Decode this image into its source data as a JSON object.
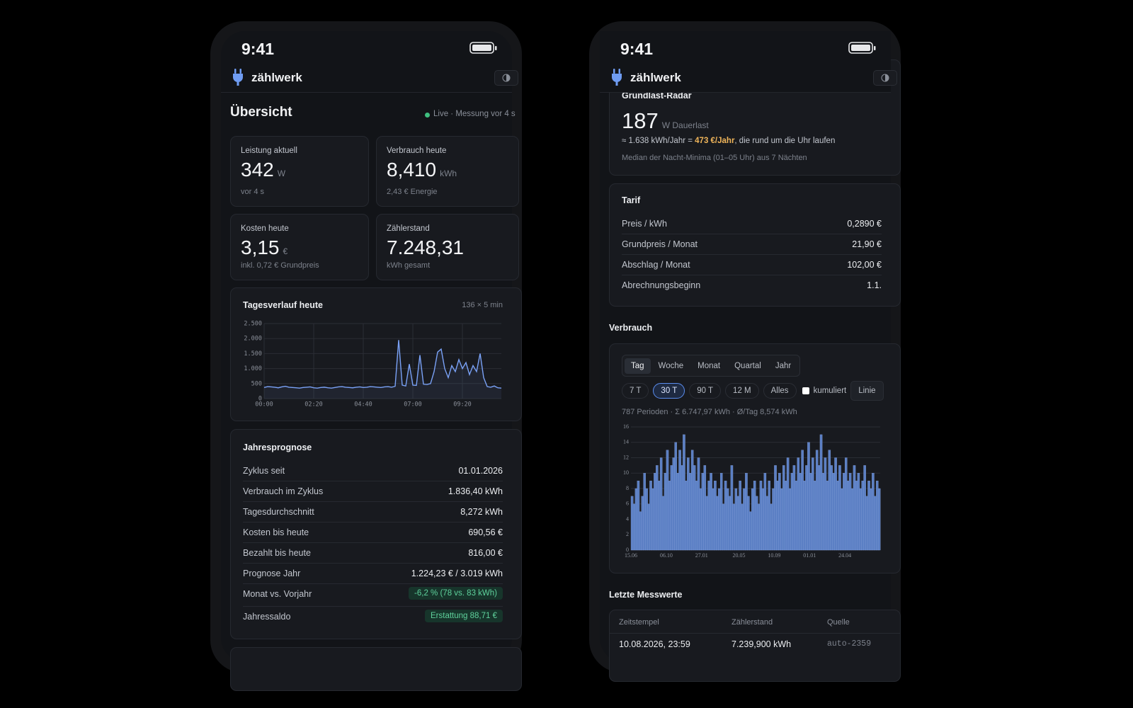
{
  "screens": [
    {
      "status_time": "9:41",
      "app_name": "zählwerk",
      "overview": {
        "title": "Übersicht",
        "live": "Live · Messung vor 4 s"
      },
      "cards": [
        {
          "label": "Leistung aktuell",
          "value": "342",
          "unit": "W",
          "sub": "vor 4 s"
        },
        {
          "label": "Verbrauch heute",
          "value": "8,410",
          "unit": "kWh",
          "sub": "2,43 € Energie"
        },
        {
          "label": "Kosten heute",
          "value": "3,15",
          "unit": "€",
          "sub": "inkl. 0,72 € Grundpreis"
        },
        {
          "label": "Zählerstand",
          "value": "7.248,31",
          "sub": "kWh gesamt"
        }
      ],
      "day_chart": {
        "type": "line",
        "title": "Tagesverlauf heute",
        "meta": "136 × 5 min",
        "color": "#7aa2f7",
        "grid": true,
        "x": [
          0,
          10,
          20,
          30,
          40,
          50,
          60,
          70,
          80,
          90,
          100,
          110,
          120,
          130,
          140,
          150,
          160,
          170,
          180,
          190,
          200,
          210,
          220,
          230,
          240,
          250,
          260,
          270,
          280,
          290,
          300,
          310,
          320,
          330,
          340,
          350,
          360,
          370,
          380,
          390,
          400,
          410,
          420,
          430,
          440,
          450,
          460,
          470,
          480,
          490,
          500,
          510,
          520,
          530,
          540,
          550,
          560,
          570,
          580,
          590,
          600,
          610,
          620,
          630,
          640,
          650,
          660,
          670
        ],
        "values": [
          370,
          400,
          390,
          380,
          360,
          390,
          410,
          380,
          370,
          360,
          350,
          370,
          380,
          390,
          360,
          350,
          370,
          380,
          360,
          350,
          370,
          390,
          400,
          380,
          370,
          360,
          380,
          390,
          370,
          380,
          400,
          390,
          380,
          370,
          390,
          400,
          380,
          410,
          1950,
          450,
          420,
          1150,
          450,
          440,
          1450,
          480,
          470,
          500,
          900,
          1550,
          1650,
          1000,
          700,
          1100,
          900,
          1300,
          1000,
          1200,
          800,
          1100,
          900,
          1500,
          700,
          400,
          380,
          420,
          360,
          350
        ],
        "xlim": [
          0,
          670
        ],
        "xticks": [
          {
            "value": 0,
            "label": "00:00"
          },
          {
            "value": 140,
            "label": "02:20"
          },
          {
            "value": 280,
            "label": "04:40"
          },
          {
            "value": 420,
            "label": "07:00"
          },
          {
            "value": 560,
            "label": "09:20"
          }
        ],
        "ylim": [
          0,
          2500
        ],
        "yticks": [
          0,
          500,
          {
            "value": 1000,
            "label": "1.000"
          },
          {
            "value": 1500,
            "label": "1.500"
          },
          {
            "value": 2000,
            "label": "2.000"
          },
          {
            "value": 2500,
            "label": "2.500"
          }
        ]
      },
      "forecast": {
        "title": "Jahresprognose",
        "rows": [
          {
            "label": "Zyklus seit",
            "value": "01.01.2026"
          },
          {
            "label": "Verbrauch im Zyklus",
            "value": "1.836,40 kWh"
          },
          {
            "label": "Tagesdurchschnitt",
            "value": "8,272 kWh"
          },
          {
            "label": "Kosten bis heute",
            "value": "690,56 €"
          },
          {
            "label": "Bezahlt bis heute",
            "value": "816,00 €"
          },
          {
            "label": "Prognose Jahr",
            "value": "1.224,23 € / 3.019 kWh"
          },
          {
            "label": "Monat vs. Vorjahr",
            "value": "-6,2 % (78 vs. 83 kWh)",
            "badge": true
          },
          {
            "label": "Jahressaldo",
            "value": "Erstattung 88,71 €",
            "badge": true
          }
        ]
      }
    },
    {
      "status_time": "9:41",
      "app_name": "zählwerk",
      "radar": {
        "title": "Grundlast-Radar",
        "value": "187",
        "unit": "W Dauerlast",
        "line_pre": "≈ 1.638 kWh/Jahr = ",
        "line_highlight": "473 €/Jahr",
        "line_post": ", die rund um die Uhr laufen",
        "note": "Median der Nacht-Minima (01–05 Uhr) aus 7 Nächten"
      },
      "tariff": {
        "title": "Tarif",
        "rows": [
          {
            "label": "Preis / kWh",
            "value": "0,2890 €"
          },
          {
            "label": "Grundpreis / Monat",
            "value": "21,90 €"
          },
          {
            "label": "Abschlag / Monat",
            "value": "102,00 €"
          },
          {
            "label": "Abrechnungsbeginn",
            "value": "1.1."
          }
        ]
      },
      "usage": {
        "title": "Verbrauch",
        "tabs": [
          "Tag",
          "Woche",
          "Monat",
          "Quartal",
          "Jahr"
        ],
        "active_tab": 0,
        "ranges": [
          "7 T",
          "30 T",
          "90 T",
          "12 M",
          "Alles"
        ],
        "active_range": 1,
        "cumulative": "kumuliert",
        "mode": "Linie",
        "summary": "787 Perioden · Σ 6.747,97 kWh · Ø/Tag 8,574 kWh",
        "chart": {
          "type": "bar",
          "color": "#5b7fc4",
          "grid": true,
          "categories": [
            "15.06",
            null,
            null,
            null,
            null,
            null,
            null,
            null,
            null,
            null,
            null,
            null,
            null,
            null,
            null,
            null,
            null,
            "06.10",
            null,
            null,
            null,
            null,
            null,
            null,
            null,
            null,
            null,
            null,
            null,
            null,
            null,
            null,
            null,
            null,
            "27.01",
            null,
            null,
            null,
            null,
            null,
            null,
            null,
            null,
            null,
            null,
            null,
            null,
            null,
            null,
            null,
            null,
            null,
            "20.05",
            null,
            null,
            null,
            null,
            null,
            null,
            null,
            null,
            null,
            null,
            null,
            null,
            null,
            null,
            null,
            null,
            "10.09",
            null,
            null,
            null,
            null,
            null,
            null,
            null,
            null,
            null,
            null,
            null,
            null,
            null,
            null,
            null,
            null,
            "01.01",
            null,
            null,
            null,
            null,
            null,
            null,
            null,
            null,
            null,
            null,
            null,
            null,
            null,
            null,
            null,
            null,
            "24.04",
            null,
            null,
            null,
            null,
            null,
            null,
            null,
            null,
            null,
            null,
            null,
            null,
            null,
            null,
            null,
            null
          ],
          "values": [
            7,
            6,
            8,
            9,
            5,
            7,
            10,
            8,
            6,
            9,
            8,
            10,
            11,
            9,
            12,
            7,
            10,
            13,
            9,
            11,
            12,
            14,
            10,
            13,
            11,
            15,
            9,
            12,
            10,
            13,
            11,
            9,
            12,
            8,
            10,
            11,
            7,
            9,
            10,
            8,
            9,
            7,
            8,
            10,
            6,
            9,
            8,
            7,
            11,
            6,
            8,
            7,
            9,
            6,
            8,
            10,
            7,
            5,
            8,
            9,
            7,
            6,
            9,
            8,
            10,
            7,
            9,
            6,
            8,
            11,
            9,
            10,
            8,
            11,
            9,
            12,
            8,
            10,
            11,
            9,
            12,
            10,
            13,
            9,
            11,
            14,
            10,
            12,
            9,
            13,
            11,
            15,
            10,
            12,
            9,
            13,
            11,
            10,
            12,
            9,
            11,
            8,
            10,
            12,
            9,
            10,
            8,
            11,
            9,
            10,
            8,
            9,
            11,
            7,
            9,
            8,
            10,
            7,
            9,
            8
          ],
          "ylim": [
            0,
            16
          ],
          "yticks": [
            0,
            2,
            4,
            6,
            8,
            10,
            12,
            14,
            16
          ]
        }
      },
      "latest": {
        "title": "Letzte Messwerte",
        "columns": [
          "Zeitstempel",
          "Zählerstand",
          "Quelle"
        ],
        "rows": [
          [
            "10.08.2026, 23:59",
            "7.239,900 kWh",
            "auto-2359"
          ]
        ]
      }
    }
  ]
}
